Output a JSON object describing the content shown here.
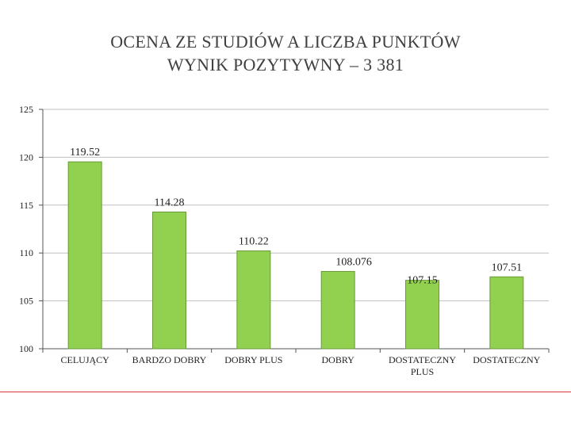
{
  "title": {
    "line1": "OCENA ZE STUDIÓW A LICZBA PUNKTÓW",
    "line2": "WYNIK POZYTYWNY – 3 381"
  },
  "colors": {
    "bar_fill": "#92d050",
    "bar_stroke": "#6a9a38",
    "grid": "#bfbfbf",
    "axis": "#555555",
    "text": "#222222",
    "footer_rule": "#d9363e"
  },
  "chart_data": {
    "type": "bar",
    "title": "OCENA ZE STUDIÓW A LICZBA PUNKTÓW / WYNIK POZYTYWNY – 3 381",
    "categories": [
      [
        "CELUJĄCY"
      ],
      [
        "BARDZO DOBRY"
      ],
      [
        "DOBRY PLUS"
      ],
      [
        "DOBRY"
      ],
      [
        "DOSTATECZNY",
        "PLUS"
      ],
      [
        "DOSTATECZNY"
      ]
    ],
    "values": [
      119.52,
      114.28,
      110.22,
      108.076,
      107.15,
      107.51
    ],
    "value_labels": [
      "119.52",
      "114.28",
      "110.22",
      "108.076",
      "107.15",
      "107.51"
    ],
    "ylim": [
      100,
      125
    ],
    "yticks": [
      100,
      105,
      110,
      115,
      120,
      125
    ],
    "grid": true,
    "legend": false
  }
}
